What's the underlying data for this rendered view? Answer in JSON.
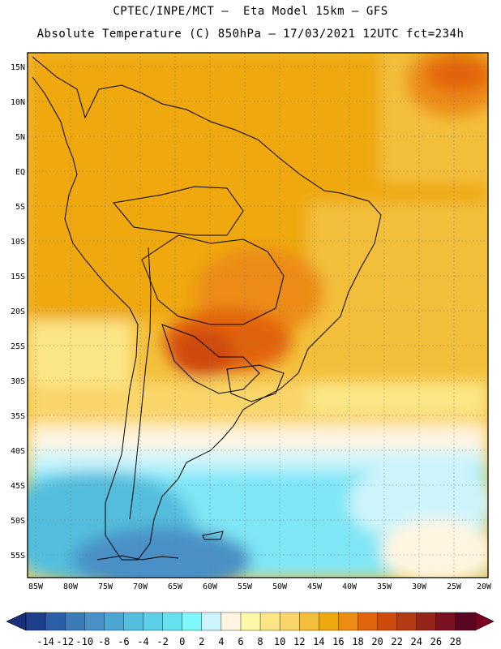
{
  "title": {
    "line1": "CPTEC/INPE/MCT –  Eta Model 15km – GFS",
    "line2": "Absolute Temperature (C) 850hPa – 17/03/2021 12UTC fct=234h"
  },
  "axes": {
    "lat_labels": [
      "15N",
      "10N",
      "5N",
      "EQ",
      "5S",
      "10S",
      "15S",
      "20S",
      "25S",
      "30S",
      "35S",
      "40S",
      "45S",
      "50S",
      "55S"
    ],
    "lon_labels": [
      "85W",
      "80W",
      "75W",
      "70W",
      "65W",
      "60W",
      "55W",
      "50W",
      "45W",
      "40W",
      "35W",
      "30W",
      "25W",
      "20W"
    ]
  },
  "colorbar": {
    "labels": [
      "-14",
      "-12",
      "-10",
      "-8",
      "-6",
      "-4",
      "-2",
      "0",
      "2",
      "4",
      "6",
      "8",
      "10",
      "12",
      "14",
      "16",
      "18",
      "20",
      "22",
      "24",
      "26",
      "28"
    ],
    "colors": [
      "#1f3e8c",
      "#2d5fa6",
      "#3c7ab8",
      "#4a90c6",
      "#4ba7d1",
      "#52bddd",
      "#5bcfe6",
      "#68e1ef",
      "#7ff7fb",
      "#cdf4fb",
      "#fff5e0",
      "#fdf8a8",
      "#fbe686",
      "#f9d56a",
      "#f3bf3a",
      "#efa80d",
      "#ec8c13",
      "#e2640d",
      "#d04a0f",
      "#b33a12",
      "#95241a",
      "#7a1020",
      "#5a0620"
    ],
    "under_color": "#1a2f7a",
    "over_color": "#7a0022"
  },
  "field": {
    "units": "C",
    "level": "850hPa"
  }
}
